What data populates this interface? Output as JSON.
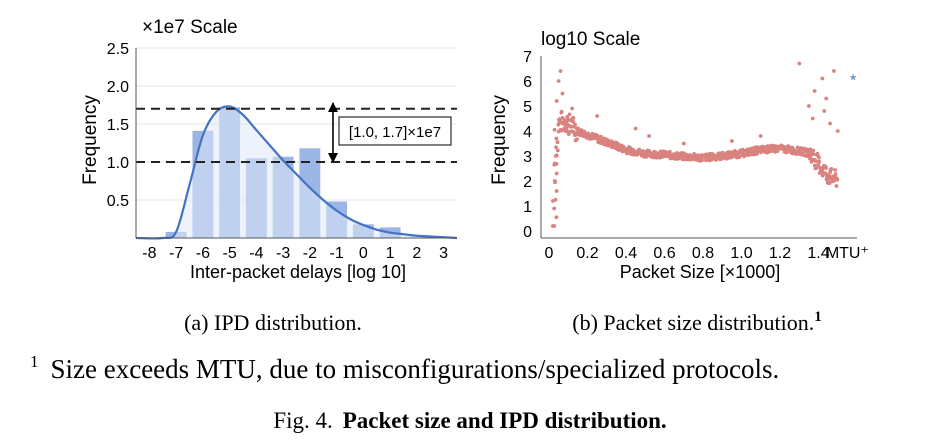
{
  "chart_data": [
    {
      "type": "bar",
      "scale_label": "×1e7 Scale",
      "ylabel": "Frequency",
      "xlabel": "Inter-packet delays [log 10]",
      "categories": [
        "-8",
        "-7",
        "-6",
        "-5",
        "-4",
        "-3",
        "-2",
        "-1",
        "0",
        "1",
        "2",
        "3"
      ],
      "xticks": [
        "-8",
        "-7",
        "-6",
        "-5",
        "-4",
        "-3",
        "-2",
        "-1",
        "0",
        "1",
        "2",
        "3"
      ],
      "yticks": [
        "0.5",
        "1.0",
        "1.5",
        "2.0",
        "2.5"
      ],
      "ylim": [
        0,
        2.5
      ],
      "values": [
        0,
        0.08,
        1.41,
        1.72,
        1.05,
        1.07,
        1.18,
        0.48,
        0.18,
        0.14,
        0,
        0
      ],
      "curve": {
        "x": [
          -8.5,
          -7.5,
          -7,
          -6.5,
          -6,
          -5.5,
          -5,
          -4.5,
          -4,
          -3.5,
          -3,
          -2.5,
          -2,
          -1.5,
          -1,
          -0.5,
          0,
          0.5,
          1,
          1.5,
          2,
          2.5,
          3,
          3.5
        ],
        "y": [
          0,
          0,
          0.08,
          0.7,
          1.35,
          1.66,
          1.73,
          1.62,
          1.42,
          1.22,
          1.02,
          0.84,
          0.66,
          0.5,
          0.36,
          0.25,
          0.17,
          0.11,
          0.07,
          0.05,
          0.03,
          0.02,
          0.01,
          0
        ]
      },
      "reference_lines": [
        1.0,
        1.7
      ],
      "annotation": "[1.0, 1.7]×1e7",
      "colors": {
        "bar": "#9bb5e4",
        "curve": "#4472c4",
        "fill": "#dfe8f7"
      },
      "caption": "(a) IPD distribution."
    },
    {
      "type": "scatter",
      "scale_label": "log10 Scale",
      "ylabel": "Frequency",
      "xlabel": "Packet Size [×1000]",
      "xticks": [
        "0",
        "0.2",
        "0.4",
        "0.6",
        "0.8",
        "1.0",
        "1.2",
        "1.4",
        "MTU⁺"
      ],
      "yticks": [
        "0",
        "1",
        "2",
        "3",
        "4",
        "5",
        "6",
        "7"
      ],
      "ylim": [
        0,
        7
      ],
      "xlim": [
        0,
        1.6
      ],
      "trend": {
        "x": [
          0.02,
          0.05,
          0.08,
          0.1,
          0.15,
          0.2,
          0.25,
          0.3,
          0.35,
          0.4,
          0.5,
          0.6,
          0.7,
          0.8,
          0.9,
          1.0,
          1.1,
          1.2,
          1.3,
          1.36,
          1.4,
          1.45,
          1.5
        ],
        "y": [
          0.5,
          4.3,
          4.4,
          4.3,
          4.0,
          3.85,
          3.7,
          3.55,
          3.4,
          3.25,
          3.1,
          3.05,
          2.98,
          2.93,
          3.0,
          3.1,
          3.25,
          3.3,
          3.2,
          3.1,
          2.7,
          2.2,
          2.05
        ]
      },
      "outliers": [
        {
          "x": 0.02,
          "y": 0.2
        },
        {
          "x": 0.02,
          "y": 1.2
        },
        {
          "x": 0.03,
          "y": 2.0
        },
        {
          "x": 0.03,
          "y": 2.7
        },
        {
          "x": 0.04,
          "y": 5.2
        },
        {
          "x": 0.05,
          "y": 6.0
        },
        {
          "x": 0.06,
          "y": 6.4
        },
        {
          "x": 0.07,
          "y": 5.5
        },
        {
          "x": 0.12,
          "y": 4.9
        },
        {
          "x": 0.25,
          "y": 4.6
        },
        {
          "x": 0.45,
          "y": 4.1
        },
        {
          "x": 0.52,
          "y": 3.8
        },
        {
          "x": 0.7,
          "y": 3.5
        },
        {
          "x": 0.95,
          "y": 3.6
        },
        {
          "x": 1.1,
          "y": 3.8
        },
        {
          "x": 1.3,
          "y": 6.7
        },
        {
          "x": 1.35,
          "y": 5.0
        },
        {
          "x": 1.37,
          "y": 4.5
        },
        {
          "x": 1.38,
          "y": 5.6
        },
        {
          "x": 1.42,
          "y": 6.1
        },
        {
          "x": 1.43,
          "y": 4.8
        },
        {
          "x": 1.44,
          "y": 5.3
        },
        {
          "x": 1.46,
          "y": 4.3
        },
        {
          "x": 1.48,
          "y": 6.4
        },
        {
          "x": 1.5,
          "y": 4.0
        }
      ],
      "mtu_point": {
        "x": 1.58,
        "y": 6.1
      },
      "colors": {
        "points": "#d9827f",
        "mtu": "#4472c4"
      },
      "caption": "(b) Packet size distribution.",
      "caption_sup": "1"
    }
  ],
  "footnote": {
    "mark": "1",
    "text": "Size exceeds MTU, due to misconfigurations/specialized protocols."
  },
  "figure": {
    "label": "Fig. 4.",
    "title": "Packet size and IPD distribution."
  }
}
